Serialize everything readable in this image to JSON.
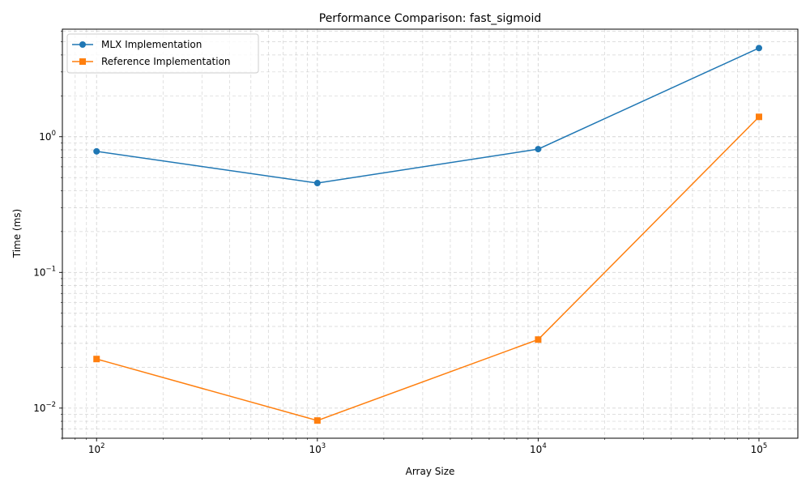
{
  "chart_data": {
    "type": "line",
    "title": "Performance Comparison: fast_sigmoid",
    "xlabel": "Array Size",
    "ylabel": "Time (ms)",
    "x_scale": "log",
    "y_scale": "log",
    "xlim": [
      70,
      150000
    ],
    "ylim": [
      0.006,
      6.2
    ],
    "grid": true,
    "legend_position": "upper-left",
    "x": [
      100,
      1000,
      10000,
      100000
    ],
    "x_tick_labels": [
      {
        "base": "10",
        "exp": "2",
        "value": 100
      },
      {
        "base": "10",
        "exp": "3",
        "value": 1000
      },
      {
        "base": "10",
        "exp": "4",
        "value": 10000
      },
      {
        "base": "10",
        "exp": "5",
        "value": 100000
      }
    ],
    "y_tick_labels": [
      {
        "base": "10",
        "exp": "−2",
        "value": 0.01
      },
      {
        "base": "10",
        "exp": "−1",
        "value": 0.1
      },
      {
        "base": "10",
        "exp": "0",
        "value": 1
      }
    ],
    "series": [
      {
        "name": "MLX Implementation",
        "color": "#1f77b4",
        "marker": "circle",
        "values": [
          0.78,
          0.455,
          0.81,
          4.5
        ]
      },
      {
        "name": "Reference Implementation",
        "color": "#ff7f0e",
        "marker": "square",
        "values": [
          0.023,
          0.0081,
          0.032,
          1.4
        ]
      }
    ]
  }
}
